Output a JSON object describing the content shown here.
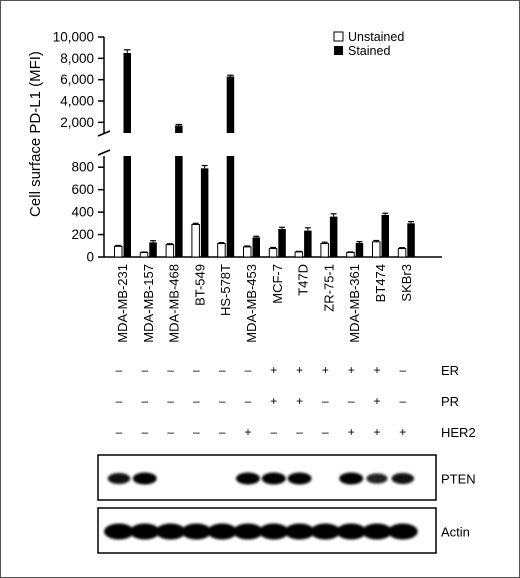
{
  "chart_data": {
    "type": "bar",
    "ylabel": "Cell surface PD-L1 (MFI)",
    "y_axis_break": true,
    "ylim_lower": [
      0,
      900
    ],
    "ylim_upper": [
      1000,
      10000
    ],
    "yticks_lower": [
      "0",
      "200",
      "400",
      "600",
      "800"
    ],
    "yticks_upper": [
      "2,000",
      "4,000",
      "6,000",
      "8,000",
      "10,000"
    ],
    "categories": [
      "MDA-MB-231",
      "MDA-MB-157",
      "MDA-MB-468",
      "BT-549",
      "HS-578T",
      "MDA-MB-453",
      "MCF-7",
      "T47D",
      "ZR-75-1",
      "MDA-MB-361",
      "BT474",
      "SKBr3"
    ],
    "series": [
      {
        "name": "Unstained",
        "color": "#ffffff",
        "values": [
          95,
          40,
          110,
          290,
          120,
          90,
          75,
          45,
          120,
          40,
          135,
          75
        ],
        "errors": [
          8,
          4,
          8,
          10,
          8,
          8,
          10,
          5,
          12,
          5,
          12,
          8
        ]
      },
      {
        "name": "Stained",
        "color": "#000000",
        "values": [
          8500,
          130,
          1700,
          790,
          6300,
          175,
          250,
          235,
          360,
          125,
          375,
          300
        ],
        "errors": [
          300,
          15,
          100,
          25,
          120,
          10,
          15,
          25,
          25,
          12,
          15,
          15
        ]
      }
    ],
    "legend": "top-right"
  },
  "markers": {
    "rows": [
      {
        "label": "ER",
        "signs": [
          "–",
          "–",
          "–",
          "–",
          "–",
          "–",
          "+",
          "+",
          "+",
          "+",
          "+",
          "–"
        ]
      },
      {
        "label": "PR",
        "signs": [
          "–",
          "–",
          "–",
          "–",
          "–",
          "–",
          "+",
          "+",
          "–",
          "–",
          "+",
          "–"
        ]
      },
      {
        "label": "HER2",
        "signs": [
          "–",
          "–",
          "–",
          "–",
          "–",
          "+",
          "–",
          "–",
          "–",
          "+",
          "+",
          "+"
        ]
      }
    ]
  },
  "blots": [
    {
      "label": "PTEN",
      "band_intensity": [
        0.85,
        1.0,
        0,
        0,
        0,
        1.0,
        1.0,
        1.0,
        0,
        1.0,
        0.7,
        0.85
      ]
    },
    {
      "label": "Actin",
      "band_intensity": [
        1.0,
        1.0,
        1.0,
        1.0,
        1.0,
        1.0,
        1.0,
        1.0,
        1.0,
        1.0,
        1.0,
        1.0
      ]
    }
  ]
}
